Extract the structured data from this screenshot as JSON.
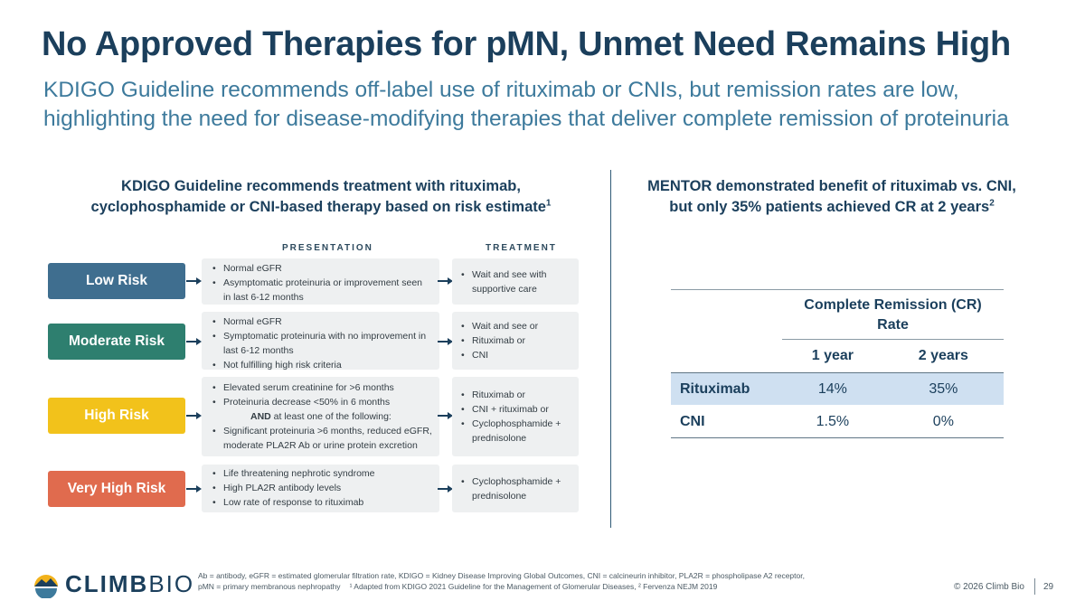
{
  "title": "No Approved Therapies for pMN, Unmet Need Remains High",
  "subtitle": {
    "line1": "KDIGO Guideline recommends off-label use of rituximab or CNIs, but remission rates are low,",
    "line2": "highlighting the need for disease-modifying therapies that deliver complete remission of proteinuria"
  },
  "left_heading": {
    "line1": "KDIGO Guideline recommends treatment with rituximab,",
    "line2": "cyclophosphamide or CNI-based therapy based on risk estimate",
    "sup": "1"
  },
  "right_heading": {
    "line1": "MENTOR demonstrated benefit of rituximab vs. CNI,",
    "line2": "but only 35% patients achieved CR at 2 years",
    "sup": "2"
  },
  "column_headers": {
    "presentation": "PRESENTATION",
    "treatment": "TREATMENT"
  },
  "risks": [
    {
      "label": "Low Risk",
      "color": "#3f6e8f",
      "presentation": [
        "Normal eGFR",
        "Asymptomatic proteinuria or improvement seen in last 6-12 months"
      ],
      "treatment": [
        "Wait and see with supportive care"
      ]
    },
    {
      "label": "Moderate Risk",
      "color": "#2e7f6f",
      "presentation": [
        "Normal eGFR",
        "Symptomatic proteinuria with no improvement in last 6-12 months",
        "Not fulfilling high risk criteria"
      ],
      "treatment": [
        "Wait and see or",
        "Rituximab or",
        "CNI"
      ]
    },
    {
      "label": "High Risk",
      "color": "#f2c21b",
      "presentation": [
        "Elevated serum creatinine for >6 months",
        "Proteinuria decrease <50% in 6 months"
      ],
      "presentation_and_bold": "AND",
      "presentation_and_rest": "at least one of the following:",
      "presentation_extra": [
        "Significant proteinuria >6 months, reduced eGFR, moderate PLA2R Ab or urine protein excretion"
      ],
      "treatment": [
        "Rituximab or",
        "CNI + rituximab or",
        "Cyclophosphamide + prednisolone"
      ]
    },
    {
      "label": "Very High Risk",
      "color": "#e06b4e",
      "presentation": [
        "Life threatening nephrotic syndrome",
        "High PLA2R antibody levels",
        "Low rate of response to rituximab"
      ],
      "treatment": [
        "Cyclophosphamide + prednisolone"
      ]
    }
  ],
  "table": {
    "title_line1": "Complete Remission (CR)",
    "title_line2": "Rate",
    "columns": [
      "1 year",
      "2 years"
    ],
    "rows": [
      {
        "label": "Rituximab",
        "values": [
          "14%",
          "35%"
        ]
      },
      {
        "label": "CNI",
        "values": [
          "1.5%",
          "0%"
        ]
      }
    ]
  },
  "logo": {
    "bold": "CLIMB",
    "light": "BIO"
  },
  "footnote": {
    "line1": "Ab = antibody, eGFR = estimated glomerular filtration rate, KDIGO = Kidney Disease Improving Global Outcomes, CNI = calcineurin inhibitor, PLA2R = phospholipase A2 receptor,",
    "line2a": "pMN = primary membranous nephropathy",
    "line2b": "¹ Adapted from KDIGO 2021 Guideline for the Management of Glomerular Diseases, ² Fervenza NEJM 2019"
  },
  "copyright": "© 2026 Climb Bio",
  "page_number": "29"
}
